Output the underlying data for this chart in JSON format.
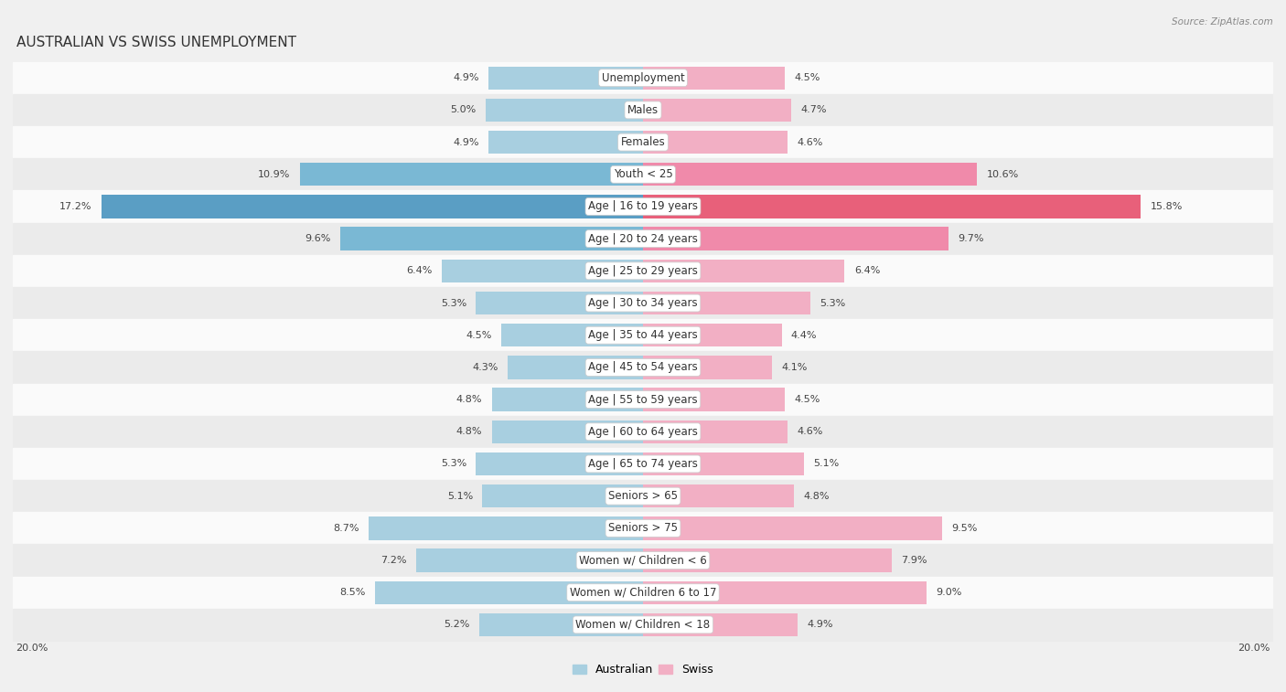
{
  "title": "AUSTRALIAN VS SWISS UNEMPLOYMENT",
  "source": "Source: ZipAtlas.com",
  "categories": [
    "Unemployment",
    "Males",
    "Females",
    "Youth < 25",
    "Age | 16 to 19 years",
    "Age | 20 to 24 years",
    "Age | 25 to 29 years",
    "Age | 30 to 34 years",
    "Age | 35 to 44 years",
    "Age | 45 to 54 years",
    "Age | 55 to 59 years",
    "Age | 60 to 64 years",
    "Age | 65 to 74 years",
    "Seniors > 65",
    "Seniors > 75",
    "Women w/ Children < 6",
    "Women w/ Children 6 to 17",
    "Women w/ Children < 18"
  ],
  "australian": [
    4.9,
    5.0,
    4.9,
    10.9,
    17.2,
    9.6,
    6.4,
    5.3,
    4.5,
    4.3,
    4.8,
    4.8,
    5.3,
    5.1,
    8.7,
    7.2,
    8.5,
    5.2
  ],
  "swiss": [
    4.5,
    4.7,
    4.6,
    10.6,
    15.8,
    9.7,
    6.4,
    5.3,
    4.4,
    4.1,
    4.5,
    4.6,
    5.1,
    4.8,
    9.5,
    7.9,
    9.0,
    4.9
  ],
  "australian_color_normal": "#a8cfe0",
  "australian_color_medium": "#7ab8d4",
  "australian_color_high": "#5a9ec4",
  "swiss_color_normal": "#f2afc4",
  "swiss_color_medium": "#f08aaa",
  "swiss_color_high": "#e8607a",
  "background_color": "#f0f0f0",
  "row_bg_light": "#fafafa",
  "row_bg_dark": "#ebebeb",
  "max_val": 20.0,
  "title_fontsize": 11,
  "label_fontsize": 8.5,
  "value_fontsize": 8,
  "legend_fontsize": 9,
  "source_fontsize": 7.5
}
